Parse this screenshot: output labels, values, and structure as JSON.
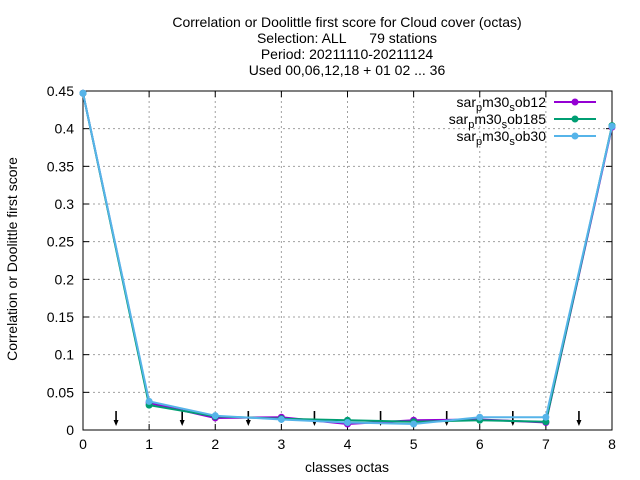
{
  "chart_data": {
    "type": "line",
    "title_lines": [
      "Correlation or Doolittle first score  for Cloud cover (octas)",
      "Selection: ALL      79 stations",
      "Period: 20211110-20211124",
      "Used 00,06,12,18 + 01 02 ... 36"
    ],
    "xlabel": "classes octas",
    "ylabel": "Correlation or Doolittle first score",
    "xlim": [
      0,
      8
    ],
    "ylim": [
      0,
      0.45
    ],
    "xticks": [
      "0",
      "1",
      "2",
      "3",
      "4",
      "5",
      "6",
      "7",
      "8"
    ],
    "yticks": [
      "0",
      "0.05",
      "0.1",
      "0.15",
      "0.2",
      "0.25",
      "0.3",
      "0.35",
      "0.4",
      "0.45"
    ],
    "grid": true,
    "legend_position": "top-right",
    "x": [
      0,
      1,
      2,
      3,
      4,
      5,
      6,
      7,
      8
    ],
    "series": [
      {
        "name": "sar_p m30_s ob12",
        "name_parts": [
          "sar",
          "p",
          "m30",
          "s",
          "ob12"
        ],
        "color": "#9400d3",
        "values": [
          0.447,
          0.036,
          0.016,
          0.017,
          0.008,
          0.013,
          0.014,
          0.01,
          0.402
        ]
      },
      {
        "name": "sar_p m30_s ob185",
        "name_parts": [
          "sar",
          "p",
          "m30",
          "s",
          "ob185"
        ],
        "color": "#009e73",
        "values": [
          0.447,
          0.033,
          0.018,
          0.015,
          0.013,
          0.011,
          0.013,
          0.011,
          0.404
        ]
      },
      {
        "name": "sar_p m30_s ob30",
        "name_parts": [
          "sar",
          "p",
          "m30",
          "s",
          "ob30"
        ],
        "color": "#56b4e9",
        "values": [
          0.447,
          0.038,
          0.019,
          0.014,
          0.01,
          0.008,
          0.017,
          0.017,
          0.403
        ]
      }
    ],
    "arrow_markers_x": [
      0.5,
      1.5,
      2.5,
      3.5,
      4.5,
      5.5,
      6.5,
      7.5
    ]
  }
}
